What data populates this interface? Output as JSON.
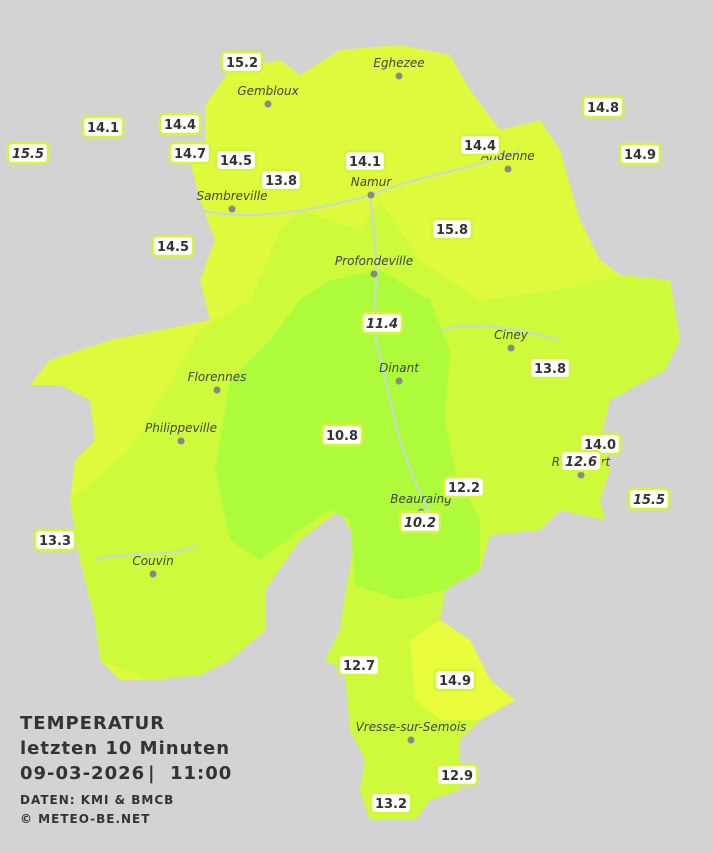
{
  "legend": {
    "title": "TEMPERATUR",
    "period": "letzten 10 Minuten",
    "date": "09-03-2026",
    "separator": "|",
    "time": "11:00",
    "source": "DATEN: KMI & BMCB",
    "copyright": "© METEO-BE.NET"
  },
  "cities": [
    "Eghezee",
    "Gembloux",
    "Andenne",
    "Namur",
    "Sambreville",
    "Profondeville",
    "Ciney",
    "Dinant",
    "Florennes",
    "Philippeville",
    "Rochefort",
    "Beauraing",
    "Couvin",
    "Vresse-sur-Semois"
  ],
  "stations": [
    "15.2",
    "14.1",
    "14.4",
    "15.5",
    "14.7",
    "14.5",
    "13.8",
    "14.1",
    "14.4",
    "14.8",
    "14.9",
    "15.8",
    "14.5",
    "11.4",
    "13.8",
    "10.8",
    "14.0",
    "12.6",
    "12.2",
    "15.5",
    "10.2",
    "13.3",
    "12.7",
    "14.9",
    "12.9",
    "13.2"
  ]
}
